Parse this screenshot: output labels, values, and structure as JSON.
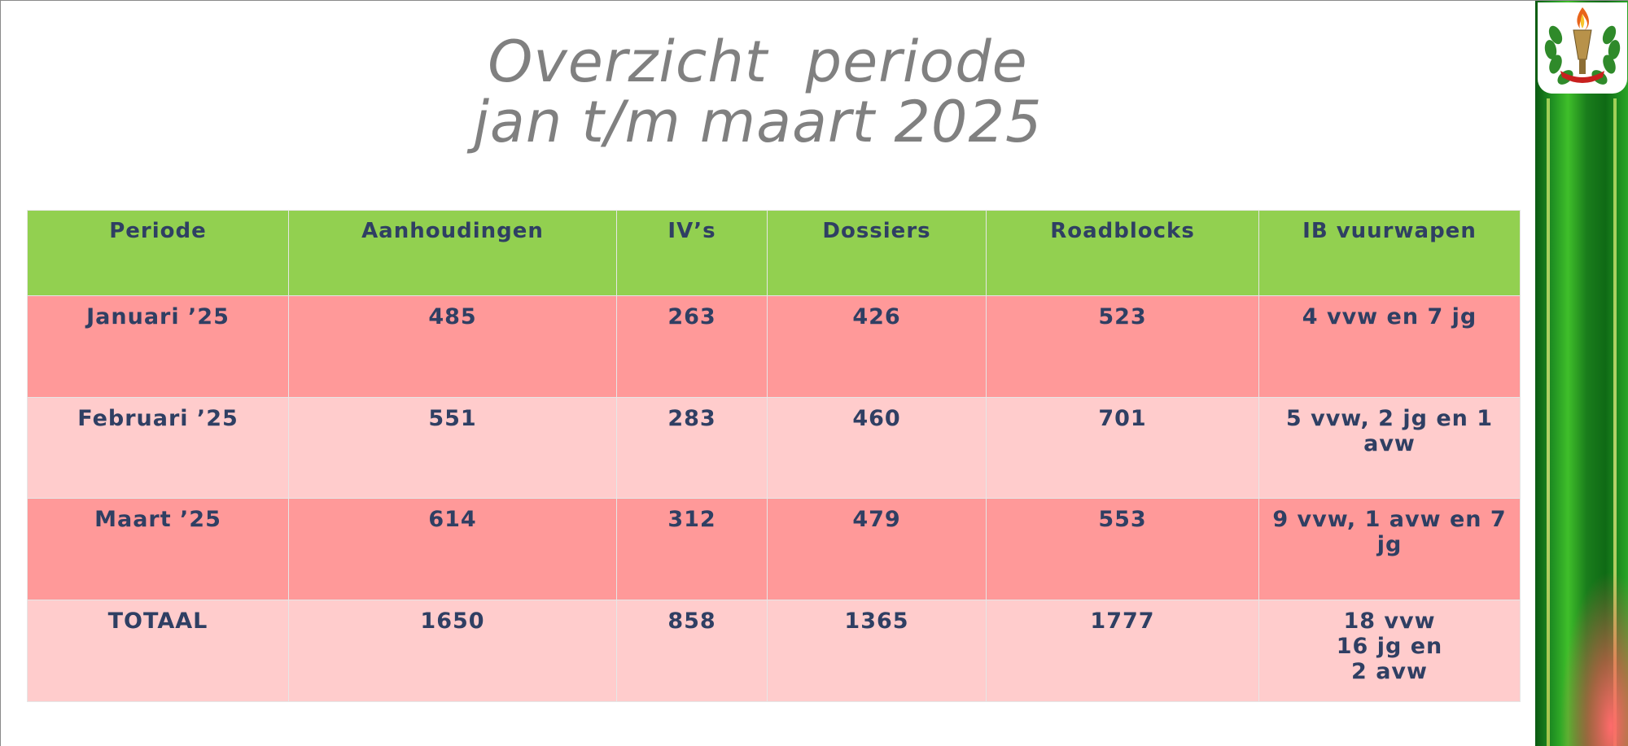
{
  "title": {
    "line1": "Overzicht  periode",
    "line2": "jan t/m maart 2025"
  },
  "table": {
    "headers": [
      "Periode",
      "Aanhoudingen",
      "IV’s",
      "Dossiers",
      "Roadblocks",
      "IB vuurwapen"
    ],
    "rows": [
      [
        "Januari ’25",
        "485",
        "263",
        "426",
        "523",
        "4 vvw en 7 jg"
      ],
      [
        "Februari ’25",
        "551",
        "283",
        "460",
        "701",
        "5 vvw, 2 jg en 1 avw"
      ],
      [
        "Maart ’25",
        "614",
        "312",
        "479",
        "553",
        "9 vvw, 1 avw en 7 jg"
      ],
      [
        "TOTAAL",
        "1650",
        "858",
        "1365",
        "1777",
        "18 vvw\n16 jg en\n2 avw"
      ]
    ]
  },
  "colors": {
    "header_bg": "#92d050",
    "row_dark": "#ff9999",
    "row_light": "#ffcccc",
    "text": "#2f3f63",
    "title": "#808080",
    "sidebar": "#1f8f22"
  },
  "icons": {
    "emblem": "police-emblem-icon"
  }
}
